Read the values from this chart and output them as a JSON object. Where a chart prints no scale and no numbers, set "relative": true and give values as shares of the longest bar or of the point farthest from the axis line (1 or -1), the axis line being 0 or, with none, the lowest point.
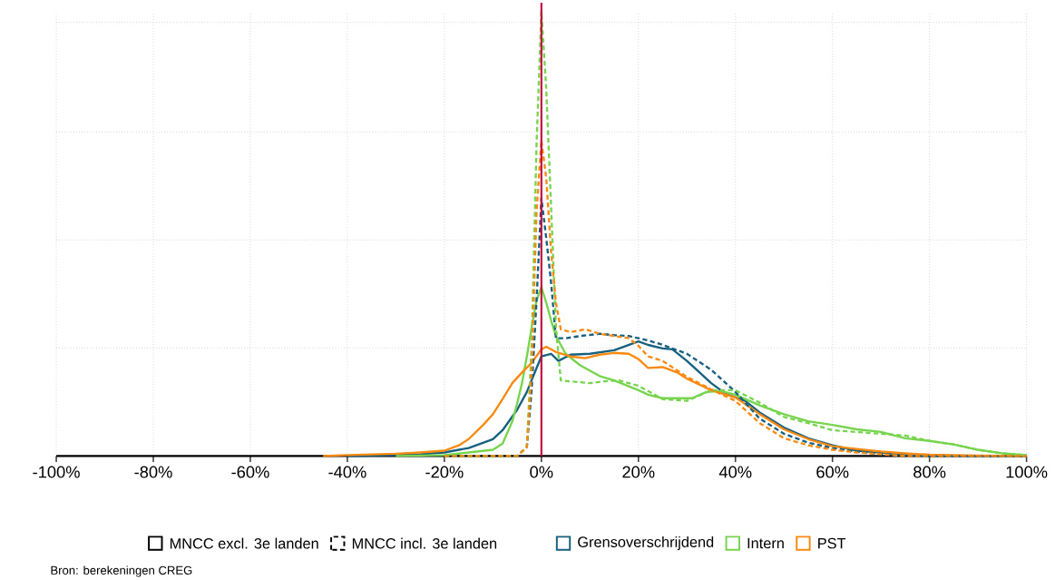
{
  "chart_data": {
    "type": "line",
    "relative": true,
    "xlim": [
      -100,
      100
    ],
    "xticks": [
      {
        "value": -100,
        "label": "-100%"
      },
      {
        "value": -80,
        "label": "-80%"
      },
      {
        "value": -60,
        "label": "-60%"
      },
      {
        "value": -40,
        "label": "-40%"
      },
      {
        "value": -20,
        "label": "-20%"
      },
      {
        "value": 0,
        "label": "0%"
      },
      {
        "value": 20,
        "label": "20%"
      },
      {
        "value": 40,
        "label": "40%"
      },
      {
        "value": 60,
        "label": "60%"
      },
      {
        "value": 80,
        "label": "80%"
      },
      {
        "value": 100,
        "label": "100%"
      }
    ],
    "grid": true,
    "legend": "bottom",
    "ref_lines": [
      {
        "axis": "x",
        "value": 0,
        "color": "#c0003c"
      }
    ],
    "annotations": [
      "MNCC excl. 3e landen",
      "MNCC incl. 3e landen",
      "Bron: berekeningen CREG"
    ],
    "series": [
      {
        "name": "Grensoverschrijdend",
        "color": "#17607f",
        "line_style": "solid",
        "x": [
          -40,
          -30,
          -25,
          -20,
          -15,
          -10,
          -8,
          -5,
          -3,
          -1,
          0,
          2,
          3.5,
          6,
          10,
          15,
          20,
          22,
          25,
          27,
          30,
          35,
          38,
          40,
          42,
          45,
          50,
          55,
          60,
          65,
          70,
          75,
          80,
          100
        ],
        "values": [
          0,
          0.002,
          0.004,
          0.008,
          0.018,
          0.038,
          0.058,
          0.104,
          0.144,
          0.198,
          0.224,
          0.23,
          0.214,
          0.228,
          0.23,
          0.238,
          0.258,
          0.25,
          0.242,
          0.24,
          0.214,
          0.164,
          0.14,
          0.132,
          0.124,
          0.098,
          0.064,
          0.04,
          0.024,
          0.012,
          0.008,
          0.003,
          0,
          0
        ]
      },
      {
        "name": "Intern",
        "color": "#77d44e",
        "line_style": "solid",
        "x": [
          -30,
          -20,
          -15,
          -10,
          -8,
          -6,
          -5,
          -4,
          -3,
          -2,
          -1,
          0,
          1,
          2,
          3,
          5,
          8,
          12,
          15,
          20,
          22,
          25,
          28,
          31,
          34,
          37,
          40,
          45,
          50,
          55,
          60,
          65,
          70,
          75,
          80,
          85,
          90,
          95,
          100
        ],
        "values": [
          0,
          0.002,
          0.008,
          0.014,
          0.028,
          0.078,
          0.118,
          0.164,
          0.224,
          0.29,
          0.35,
          0.38,
          0.345,
          0.305,
          0.27,
          0.23,
          0.204,
          0.18,
          0.17,
          0.148,
          0.138,
          0.13,
          0.13,
          0.13,
          0.144,
          0.146,
          0.138,
          0.114,
          0.094,
          0.078,
          0.07,
          0.06,
          0.054,
          0.04,
          0.034,
          0.026,
          0.014,
          0.006,
          0.002
        ]
      },
      {
        "name": "PST",
        "color": "#f98a11",
        "line_style": "solid",
        "x": [
          -45,
          -40,
          -30,
          -25,
          -20,
          -17,
          -15,
          -12,
          -10,
          -8,
          -6,
          -4,
          -2,
          0,
          1,
          3,
          6,
          9,
          12,
          15,
          18,
          20,
          22,
          25,
          28,
          30,
          35,
          40,
          45,
          50,
          55,
          60,
          65,
          70,
          75,
          80,
          90,
          100
        ],
        "values": [
          0,
          0.002,
          0.005,
          0.008,
          0.012,
          0.024,
          0.038,
          0.07,
          0.094,
          0.128,
          0.164,
          0.188,
          0.21,
          0.24,
          0.246,
          0.234,
          0.224,
          0.22,
          0.228,
          0.232,
          0.23,
          0.218,
          0.198,
          0.2,
          0.188,
          0.174,
          0.148,
          0.132,
          0.094,
          0.06,
          0.038,
          0.022,
          0.016,
          0.01,
          0.006,
          0.003,
          0.001,
          0
        ]
      },
      {
        "color": "#17607f",
        "line_style": "dashed",
        "x": [
          -20,
          -5,
          -3,
          -2,
          -1,
          0,
          1,
          2,
          3,
          5,
          8,
          12,
          15,
          18,
          20,
          22,
          25,
          30,
          35,
          40,
          45,
          50,
          55,
          60,
          65,
          70,
          75,
          100
        ],
        "values": [
          0,
          0,
          0.02,
          0.15,
          0.35,
          0.58,
          0.49,
          0.39,
          0.265,
          0.265,
          0.27,
          0.275,
          0.272,
          0.27,
          0.265,
          0.26,
          0.25,
          0.23,
          0.194,
          0.144,
          0.084,
          0.05,
          0.03,
          0.018,
          0.01,
          0.005,
          0,
          0
        ]
      },
      {
        "color": "#77d44e",
        "line_style": "dashed",
        "x": [
          -20,
          -5,
          -3,
          -2,
          -1,
          0,
          1,
          2,
          3,
          4,
          6,
          10,
          13,
          16,
          20,
          25,
          30,
          35,
          40,
          45,
          50,
          55,
          60,
          65,
          70,
          75,
          80,
          85,
          90,
          95,
          100
        ],
        "values": [
          0,
          0,
          0.02,
          0.25,
          0.7,
          1,
          0.826,
          0.56,
          0.29,
          0.17,
          0.168,
          0.164,
          0.168,
          0.17,
          0.158,
          0.128,
          0.124,
          0.148,
          0.148,
          0.12,
          0.088,
          0.074,
          0.058,
          0.054,
          0.05,
          0.046,
          0.034,
          0.026,
          0.014,
          0.006,
          0.002
        ]
      },
      {
        "color": "#f98a11",
        "line_style": "dashed",
        "x": [
          -20,
          -5,
          -3,
          -2,
          -1,
          0,
          1,
          2,
          3,
          4,
          6,
          9,
          12,
          15,
          18,
          20,
          22,
          25,
          30,
          35,
          40,
          45,
          50,
          55,
          60,
          65,
          70,
          75,
          100
        ],
        "values": [
          0,
          0,
          0.02,
          0.2,
          0.55,
          0.71,
          0.625,
          0.46,
          0.345,
          0.285,
          0.279,
          0.285,
          0.275,
          0.27,
          0.265,
          0.248,
          0.224,
          0.214,
          0.178,
          0.15,
          0.124,
          0.074,
          0.04,
          0.024,
          0.014,
          0.008,
          0.004,
          0,
          0
        ]
      }
    ]
  }
}
